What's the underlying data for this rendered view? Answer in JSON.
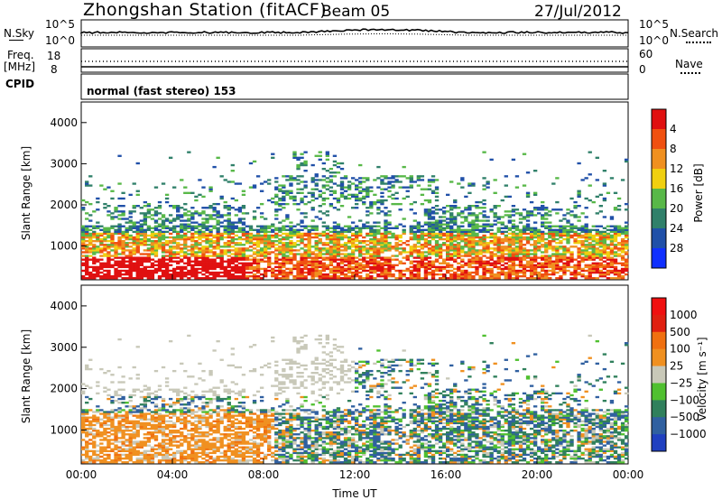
{
  "header": {
    "station_title": "Zhongshan Station (fitACF)",
    "beam": "Beam 05",
    "date": "27/Jul/2012"
  },
  "panels": {
    "nsky_label": "N.Sky",
    "nsky_ticks": [
      "10^5",
      "10^0"
    ],
    "nsearch_label": "N.Search",
    "freq_label": "Freq.",
    "freq_unit": "[MHz]",
    "freq_ticks": [
      "18",
      "8"
    ],
    "nave_label": "Nave",
    "nave_ticks": [
      "60",
      "0"
    ],
    "cpid_label": "CPID",
    "cpid_value": "normal (fast stereo) 153"
  },
  "chart_data": [
    {
      "type": "heatmap",
      "title": "",
      "xlabel": "Time UT",
      "ylabel": "Slant Range [km]",
      "x_ticks": [
        "00:00",
        "04:00",
        "08:00",
        "12:00",
        "16:00",
        "20:00",
        "00:00"
      ],
      "y_ticks": [
        "1000",
        "2000",
        "3000",
        "4000"
      ],
      "xlim": [
        "00:00",
        "24:00"
      ],
      "ylim": [
        180,
        4500
      ],
      "colorbar": {
        "label": "Power [dB]",
        "ticks": [
          "4",
          "8",
          "12",
          "16",
          "20",
          "24",
          "28"
        ],
        "colors": [
          "#1030ff",
          "#2050a8",
          "#30806a",
          "#58b848",
          "#f0d010",
          "#f09020",
          "#f05010",
          "#e01010"
        ]
      }
    },
    {
      "type": "heatmap",
      "title": "",
      "xlabel": "Time UT",
      "ylabel": "Slant Range [km]",
      "x_ticks": [
        "00:00",
        "04:00",
        "08:00",
        "12:00",
        "16:00",
        "20:00",
        "00:00"
      ],
      "y_ticks": [
        "1000",
        "2000",
        "3000",
        "4000"
      ],
      "xlim": [
        "00:00",
        "24:00"
      ],
      "ylim": [
        180,
        4500
      ],
      "colorbar": {
        "label": "Velocity [m s⁻¹]",
        "ticks": [
          "1000",
          "500",
          "100",
          "25",
          "−25",
          "−100",
          "−500",
          "−1000"
        ],
        "colors": [
          "#2040c0",
          "#3060a0",
          "#30805c",
          "#50c030",
          "#c8c8b8",
          "#f09020",
          "#f07010",
          "#e02010",
          "#f01010"
        ]
      }
    }
  ]
}
